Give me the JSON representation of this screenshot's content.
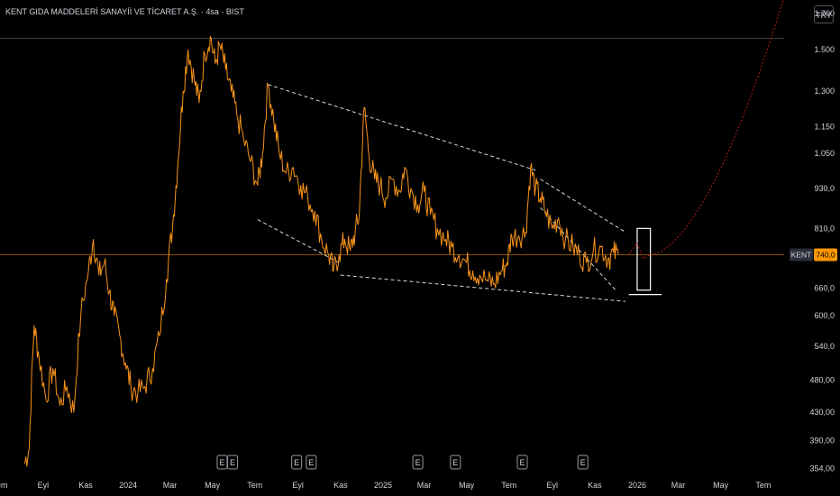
{
  "title": "KENT GIDA MADDELERİ SANAYİİ VE TİCARET A.Ş. · 4sa · BIST",
  "currency": "TRY",
  "colors": {
    "background": "#000000",
    "price_line": "#f7931a",
    "trendline": "#ffffff",
    "projection": "#b71c1c",
    "current_price_marker": "#ff9800",
    "resistance_line": "#3a3a3a",
    "axis_text": "#d1d4dc"
  },
  "chart_data": {
    "type": "line",
    "symbol": "KENT",
    "current_price": 740,
    "current_price_label": "740,0",
    "y_scale": "log",
    "ylim": [
      345,
      1780
    ],
    "y_ticks": [
      {
        "value": 1700,
        "label": "1.700"
      },
      {
        "value": 1500,
        "label": "1.500"
      },
      {
        "value": 1300,
        "label": "1.300"
      },
      {
        "value": 1150,
        "label": "1.150"
      },
      {
        "value": 1050,
        "label": "1.050"
      },
      {
        "value": 930,
        "label": "930,0"
      },
      {
        "value": 810,
        "label": "810,0"
      },
      {
        "value": 660,
        "label": "660,0"
      },
      {
        "value": 600,
        "label": "600,0"
      },
      {
        "value": 540,
        "label": "540,0"
      },
      {
        "value": 480,
        "label": "480,00"
      },
      {
        "value": 430,
        "label": "430,00"
      },
      {
        "value": 390,
        "label": "390,00"
      },
      {
        "value": 354,
        "label": "354,00"
      }
    ],
    "xlim": [
      "2023-07-01",
      "2026-07-31"
    ],
    "x_ticks": [
      {
        "date": "2023-07-01",
        "label": "Tem"
      },
      {
        "date": "2023-09-01",
        "label": "Eyl"
      },
      {
        "date": "2023-11-01",
        "label": "Kas"
      },
      {
        "date": "2024-01-01",
        "label": "2024"
      },
      {
        "date": "2024-03-01",
        "label": "Mar"
      },
      {
        "date": "2024-05-01",
        "label": "May"
      },
      {
        "date": "2024-07-01",
        "label": "Tem"
      },
      {
        "date": "2024-09-01",
        "label": "Eyl"
      },
      {
        "date": "2024-11-01",
        "label": "Kas"
      },
      {
        "date": "2025-01-01",
        "label": "2025"
      },
      {
        "date": "2025-03-01",
        "label": "Mar"
      },
      {
        "date": "2025-05-01",
        "label": "May"
      },
      {
        "date": "2025-07-01",
        "label": "Tem"
      },
      {
        "date": "2025-09-01",
        "label": "Eyl"
      },
      {
        "date": "2025-11-01",
        "label": "Kas"
      },
      {
        "date": "2026-01-01",
        "label": "2026"
      },
      {
        "date": "2026-03-01",
        "label": "Mar"
      },
      {
        "date": "2026-05-01",
        "label": "May"
      },
      {
        "date": "2026-07-01",
        "label": "Tem"
      }
    ],
    "earnings_marker_label": "E",
    "earnings_dates": [
      "2024-05-15",
      "2024-05-30",
      "2024-08-30",
      "2024-09-20",
      "2025-02-20",
      "2025-04-15",
      "2025-07-20",
      "2025-10-15"
    ],
    "series": [
      {
        "values": [
          [
            "2023-08-05",
            360
          ],
          [
            "2023-08-12",
            380
          ],
          [
            "2023-08-19",
            580
          ],
          [
            "2023-08-26",
            520
          ],
          [
            "2023-09-05",
            450
          ],
          [
            "2023-09-15",
            500
          ],
          [
            "2023-09-25",
            440
          ],
          [
            "2023-10-05",
            470
          ],
          [
            "2023-10-15",
            430
          ],
          [
            "2023-10-25",
            600
          ],
          [
            "2023-11-05",
            700
          ],
          [
            "2023-11-12",
            780
          ],
          [
            "2023-11-20",
            690
          ],
          [
            "2023-11-28",
            720
          ],
          [
            "2023-12-05",
            650
          ],
          [
            "2023-12-12",
            600
          ],
          [
            "2023-12-20",
            560
          ],
          [
            "2023-12-28",
            510
          ],
          [
            "2024-01-05",
            470
          ],
          [
            "2024-01-15",
            460
          ],
          [
            "2024-01-25",
            470
          ],
          [
            "2024-02-05",
            500
          ],
          [
            "2024-02-15",
            560
          ],
          [
            "2024-02-25",
            680
          ],
          [
            "2024-03-05",
            820
          ],
          [
            "2024-03-12",
            1000
          ],
          [
            "2024-03-20",
            1300
          ],
          [
            "2024-03-27",
            1500
          ],
          [
            "2024-04-05",
            1350
          ],
          [
            "2024-04-12",
            1250
          ],
          [
            "2024-04-20",
            1480
          ],
          [
            "2024-04-28",
            1570
          ],
          [
            "2024-05-05",
            1430
          ],
          [
            "2024-05-12",
            1520
          ],
          [
            "2024-05-20",
            1400
          ],
          [
            "2024-05-28",
            1300
          ],
          [
            "2024-06-05",
            1200
          ],
          [
            "2024-06-15",
            1100
          ],
          [
            "2024-06-25",
            1020
          ],
          [
            "2024-07-05",
            940
          ],
          [
            "2024-07-12",
            1050
          ],
          [
            "2024-07-20",
            1330
          ],
          [
            "2024-07-28",
            1180
          ],
          [
            "2024-08-05",
            1050
          ],
          [
            "2024-08-15",
            980
          ],
          [
            "2024-08-25",
            1000
          ],
          [
            "2024-09-05",
            940
          ],
          [
            "2024-09-15",
            900
          ],
          [
            "2024-09-25",
            860
          ],
          [
            "2024-10-05",
            780
          ],
          [
            "2024-10-15",
            740
          ],
          [
            "2024-10-22",
            700
          ],
          [
            "2024-10-30",
            740
          ],
          [
            "2024-11-07",
            780
          ],
          [
            "2024-11-15",
            750
          ],
          [
            "2024-11-22",
            800
          ],
          [
            "2024-11-28",
            850
          ],
          [
            "2024-12-05",
            1230
          ],
          [
            "2024-12-12",
            1040
          ],
          [
            "2024-12-20",
            960
          ],
          [
            "2024-12-28",
            940
          ],
          [
            "2025-01-05",
            900
          ],
          [
            "2025-01-15",
            960
          ],
          [
            "2025-01-25",
            920
          ],
          [
            "2025-02-01",
            1000
          ],
          [
            "2025-02-10",
            930
          ],
          [
            "2025-02-20",
            880
          ],
          [
            "2025-03-01",
            920
          ],
          [
            "2025-03-10",
            850
          ],
          [
            "2025-03-20",
            810
          ],
          [
            "2025-04-01",
            780
          ],
          [
            "2025-04-10",
            760
          ],
          [
            "2025-04-20",
            740
          ],
          [
            "2025-05-01",
            720
          ],
          [
            "2025-05-10",
            700
          ],
          [
            "2025-05-20",
            690
          ],
          [
            "2025-06-01",
            675
          ],
          [
            "2025-06-10",
            670
          ],
          [
            "2025-06-20",
            700
          ],
          [
            "2025-06-28",
            720
          ],
          [
            "2025-07-05",
            790
          ],
          [
            "2025-07-15",
            790
          ],
          [
            "2025-07-25",
            800
          ],
          [
            "2025-08-01",
            1000
          ],
          [
            "2025-08-08",
            930
          ],
          [
            "2025-08-15",
            900
          ],
          [
            "2025-08-22",
            860
          ],
          [
            "2025-09-01",
            810
          ],
          [
            "2025-09-10",
            840
          ],
          [
            "2025-09-20",
            780
          ],
          [
            "2025-10-01",
            760
          ],
          [
            "2025-10-10",
            740
          ],
          [
            "2025-10-20",
            720
          ],
          [
            "2025-10-30",
            750
          ],
          [
            "2025-11-10",
            760
          ],
          [
            "2025-11-20",
            730
          ],
          [
            "2025-11-28",
            745
          ],
          [
            "2025-12-05",
            740
          ]
        ]
      }
    ],
    "annotations": {
      "resistance_level": 1560,
      "upper_channel": [
        [
          "2024-07-20",
          1330
        ],
        [
          "2025-08-08",
          990
        ]
      ],
      "lower_channel_upper_arm": [
        [
          "2024-07-05",
          835
        ],
        [
          "2024-10-30",
          720
        ]
      ],
      "lower_channel": [
        [
          "2024-11-01",
          690
        ],
        [
          "2025-12-15",
          630
        ]
      ],
      "wedge_upper": [
        [
          "2025-08-15",
          960
        ],
        [
          "2025-12-15",
          800
        ]
      ],
      "wedge_lower": [
        [
          "2025-08-15",
          870
        ],
        [
          "2025-12-01",
          655
        ]
      ],
      "target_box": {
        "date_start": "2026-01-01",
        "date_end": "2026-01-20",
        "low": 655,
        "high": 810
      },
      "box_baseline": {
        "date_start": "2025-12-20",
        "date_end": "2026-02-05",
        "value": 645
      },
      "projection_path": [
        [
          "2025-12-20",
          740
        ],
        [
          "2026-01-01",
          770
        ],
        [
          "2026-01-10",
          730
        ],
        [
          "2026-01-20",
          740
        ]
      ],
      "projection_curve": [
        [
          "2026-01-20",
          740
        ],
        [
          "2026-07-31",
          1800
        ]
      ]
    }
  }
}
